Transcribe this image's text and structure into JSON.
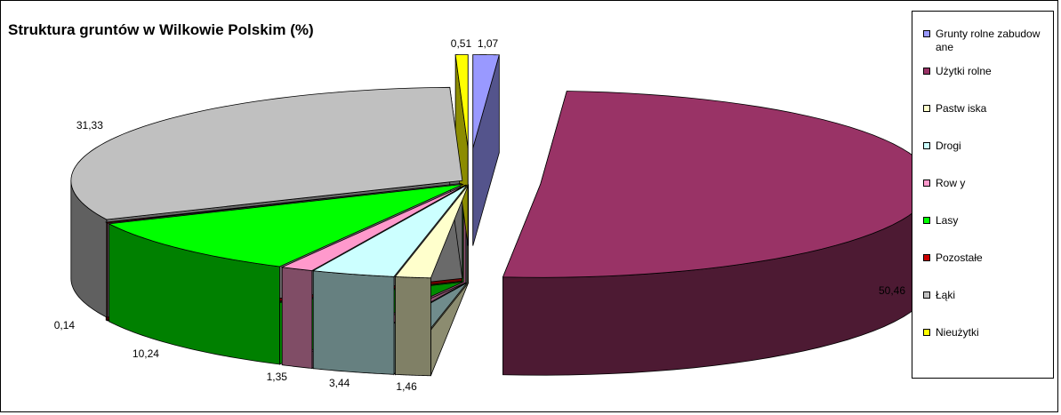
{
  "chart_data": {
    "type": "pie",
    "title": "Struktura gruntów w Wilkowie Polskim (%)",
    "categories": [
      "Grunty rolne zabudow ane",
      "Użytki rolne",
      "Pastw iska",
      "Drogi",
      "Row y",
      "Lasy",
      "Pozostałe",
      "Łąki",
      "Nieużytki"
    ],
    "values": [
      1.07,
      50.46,
      1.46,
      3.44,
      1.35,
      10.24,
      0.14,
      31.33,
      0.51
    ],
    "value_labels": [
      "1,07",
      "50,46",
      "1,46",
      "3,44",
      "1,35",
      "10,24",
      "0,14",
      "31,33",
      "0,51"
    ],
    "colors": [
      "#9999FF",
      "#993366",
      "#FFFFCC",
      "#CCFFFF",
      "#FF99CC",
      "#00FF00",
      "#CC0000",
      "#C0C0C0",
      "#FFFF00"
    ],
    "legend_position": "right",
    "exploded": true,
    "three_d": true
  }
}
